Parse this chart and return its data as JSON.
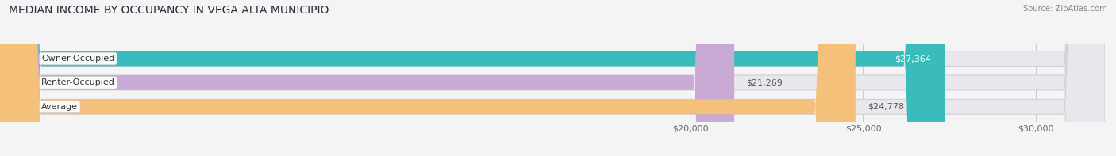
{
  "title": "MEDIAN INCOME BY OCCUPANCY IN VEGA ALTA MUNICIPIO",
  "source": "Source: ZipAtlas.com",
  "categories": [
    "Owner-Occupied",
    "Renter-Occupied",
    "Average"
  ],
  "values": [
    27364,
    21269,
    24778
  ],
  "bar_colors": [
    "#3bbcbc",
    "#c9aad4",
    "#f5c07a"
  ],
  "label_texts": [
    "$27,364",
    "$21,269",
    "$24,778"
  ],
  "x_min": 0,
  "x_max": 32000,
  "x_ticks": [
    20000,
    25000,
    30000
  ],
  "x_tick_labels": [
    "$20,000",
    "$25,000",
    "$30,000"
  ],
  "title_fontsize": 10,
  "bar_height": 0.62,
  "bg_color": "#f4f4f4",
  "bar_bg_color": "#e8e8ec",
  "value_label_fontsize": 8,
  "category_label_fontsize": 8,
  "owner_label_color": "white",
  "renter_label_color": "#555555",
  "avg_label_color": "#555555"
}
